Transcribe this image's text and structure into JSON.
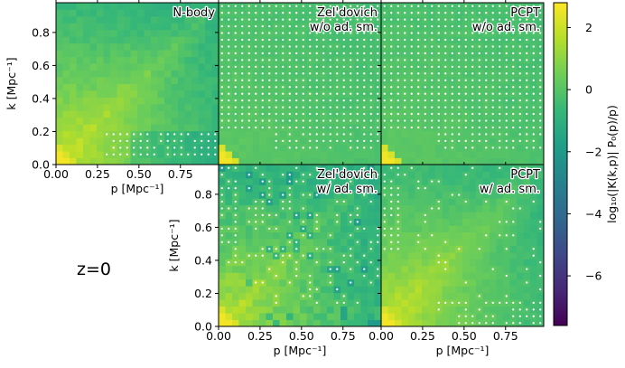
{
  "chart_data": {
    "type": "heatmap",
    "redshift_label": "z=0",
    "shared": {
      "xlabel": "p [Mpc⁻¹]",
      "ylabel": "k [Mpc⁻¹]",
      "xlim": [
        0,
        0.98
      ],
      "ylim": [
        0,
        0.98
      ],
      "grid_cells": 24,
      "xticks": [
        0.0,
        0.25,
        0.5,
        0.75
      ],
      "xtick_labels": [
        "0.00",
        "0.25",
        "0.50",
        "0.75"
      ],
      "yticks": [
        0.0,
        0.2,
        0.4,
        0.6,
        0.8
      ],
      "ytick_labels": [
        "0.0",
        "0.2",
        "0.4",
        "0.6",
        "0.8"
      ],
      "marker_note": "white dots mark cells where K(k,p) is negative"
    },
    "panels": [
      {
        "id": "nbody",
        "title_lines": [
          "N-body"
        ],
        "show_xaxis": true,
        "show_yaxis": true
      },
      {
        "id": "zeldovich-noadsm",
        "title_lines": [
          "Zel'dovich",
          "w/o ad. sm."
        ],
        "show_xaxis": false,
        "show_yaxis": false
      },
      {
        "id": "pcpt-noadsm",
        "title_lines": [
          "PCPT",
          "w/o ad. sm."
        ],
        "show_xaxis": false,
        "show_yaxis": false
      },
      {
        "id": "zeldovich-adsm",
        "title_lines": [
          "Zel'dovich",
          "w/ ad. sm."
        ],
        "show_xaxis": true,
        "show_yaxis": true
      },
      {
        "id": "pcpt-adsm",
        "title_lines": [
          "PCPT",
          "w/ ad. sm."
        ],
        "show_xaxis": true,
        "show_yaxis": false
      }
    ],
    "colorbar": {
      "label": "log₁₀(|K(k,p)| P₀(p)/p)",
      "min": -7.6,
      "max": 2.8,
      "ticks": [
        2,
        0,
        -2,
        -4,
        -6
      ],
      "tick_labels": [
        "2",
        "0",
        "−2",
        "−4",
        "−6"
      ],
      "colormap": "viridis",
      "colors": [
        "#440154",
        "#482878",
        "#3e4989",
        "#31688e",
        "#26828e",
        "#1f9e89",
        "#35b779",
        "#6ece58",
        "#b5de2b",
        "#fde725"
      ]
    }
  }
}
